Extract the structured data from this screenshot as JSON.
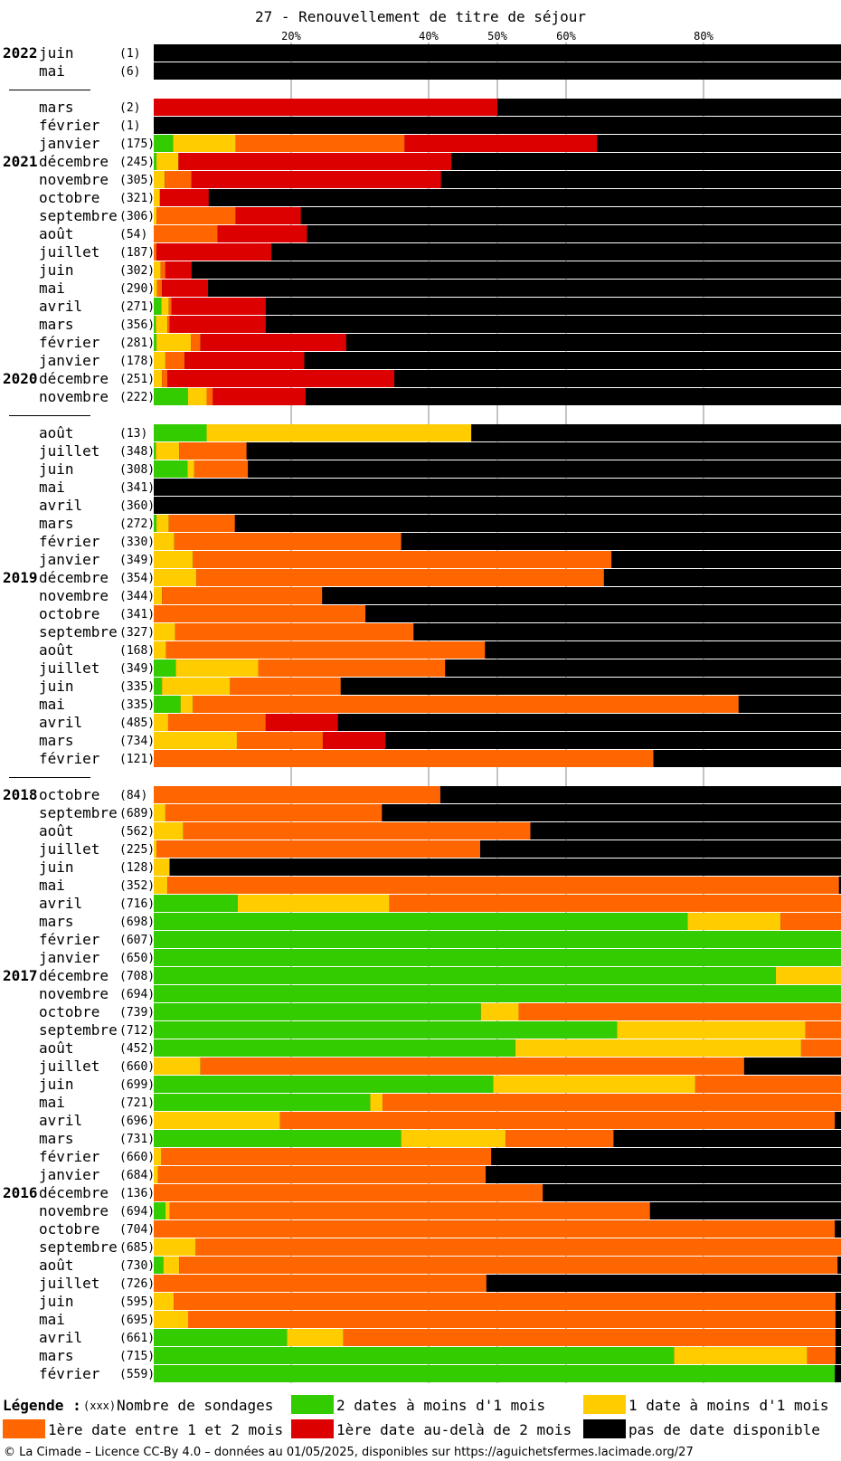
{
  "chart_data": {
    "type": "bar",
    "orientation": "horizontal-stacked",
    "title": "27 - Renouvellement de titre de séjour",
    "x_ticks": [
      {
        "value": 20,
        "label": "20%"
      },
      {
        "value": 40,
        "label": "40%"
      },
      {
        "value": 50,
        "label": "50%"
      },
      {
        "value": 60,
        "label": "60%"
      },
      {
        "value": 80,
        "label": "80%"
      }
    ],
    "xlim": [
      0,
      100
    ],
    "colors": {
      "green": "#33cc00",
      "yellow": "#ffcc00",
      "orange": "#ff6600",
      "red": "#dd0000",
      "black": "#000000"
    },
    "series": [
      {
        "key": "green",
        "name": "2 dates à moins d'1 mois"
      },
      {
        "key": "yellow",
        "name": "1 date à moins d'1 mois"
      },
      {
        "key": "orange",
        "name": "1ère date entre 1 et 2 mois"
      },
      {
        "key": "red",
        "name": "1ère date au-delà de 2 mois"
      },
      {
        "key": "black",
        "name": "pas de date disponible"
      }
    ],
    "rows": [
      {
        "year": "2022",
        "month": "juin",
        "n": "(1)",
        "g": 0,
        "y": 0,
        "o": 0,
        "r": 0
      },
      {
        "month": "mai",
        "n": "(6)",
        "g": 0,
        "y": 0,
        "o": 0,
        "r": 0
      },
      {
        "gap": true
      },
      {
        "month": "mars",
        "n": "(2)",
        "g": 0,
        "y": 0,
        "o": 0,
        "r": 50.0
      },
      {
        "month": "février",
        "n": "(1)",
        "g": 0,
        "y": 0,
        "o": 0,
        "r": 0
      },
      {
        "month": "janvier",
        "n": "(175)",
        "g": 2.8,
        "y": 9.1,
        "o": 24.6,
        "r": 28.0
      },
      {
        "year": "2021",
        "month": "décembre",
        "n": "(245)",
        "g": 0.4,
        "y": 3.2,
        "o": 0,
        "r": 39.7
      },
      {
        "month": "novembre",
        "n": "(305)",
        "g": 0,
        "y": 1.6,
        "o": 3.9,
        "r": 36.3
      },
      {
        "month": "octobre",
        "n": "(321)",
        "g": 0,
        "y": 0.9,
        "o": 0,
        "r": 7.1
      },
      {
        "month": "septembre",
        "n": "(306)",
        "g": 0,
        "y": 0.4,
        "o": 11.5,
        "r": 9.5
      },
      {
        "month": "août",
        "n": "(54)",
        "g": 0,
        "y": 0,
        "o": 9.3,
        "r": 13.0
      },
      {
        "month": "juillet",
        "n": "(187)",
        "g": 0,
        "y": 0,
        "o": 0.4,
        "r": 16.7
      },
      {
        "month": "juin",
        "n": "(302)",
        "g": 0,
        "y": 1.0,
        "o": 0.7,
        "r": 3.8
      },
      {
        "month": "mai",
        "n": "(290)",
        "g": 0,
        "y": 0.5,
        "o": 0.7,
        "r": 6.7
      },
      {
        "month": "avril",
        "n": "(271)",
        "g": 1.1,
        "y": 1.1,
        "o": 0.4,
        "r": 13.7
      },
      {
        "month": "mars",
        "n": "(356)",
        "g": 0.3,
        "y": 1.7,
        "o": 0.3,
        "r": 14.0
      },
      {
        "month": "février",
        "n": "(281)",
        "g": 0.4,
        "y": 5.0,
        "o": 1.4,
        "r": 21.2
      },
      {
        "month": "janvier",
        "n": "(178)",
        "g": 0,
        "y": 1.7,
        "o": 2.8,
        "r": 17.4
      },
      {
        "year": "2020",
        "month": "décembre",
        "n": "(251)",
        "g": 0,
        "y": 1.2,
        "o": 0.8,
        "r": 33.0
      },
      {
        "month": "novembre",
        "n": "(222)",
        "g": 5.0,
        "y": 2.7,
        "o": 0.9,
        "r": 13.5
      },
      {
        "gap": true
      },
      {
        "month": "août",
        "n": "(13)",
        "g": 7.7,
        "y": 38.5,
        "o": 0,
        "r": 0
      },
      {
        "month": "juillet",
        "n": "(348)",
        "g": 0.3,
        "y": 3.4,
        "o": 9.8,
        "r": 0
      },
      {
        "month": "juin",
        "n": "(308)",
        "g": 4.9,
        "y": 1.0,
        "o": 7.8,
        "r": 0
      },
      {
        "month": "mai",
        "n": "(341)",
        "g": 0,
        "y": 0,
        "o": 0,
        "r": 0
      },
      {
        "month": "avril",
        "n": "(360)",
        "g": 0,
        "y": 0,
        "o": 0,
        "r": 0
      },
      {
        "month": "mars",
        "n": "(272)",
        "g": 0.4,
        "y": 1.8,
        "o": 9.6,
        "r": 0
      },
      {
        "month": "février",
        "n": "(330)",
        "g": 0,
        "y": 3.0,
        "o": 33.0,
        "r": 0
      },
      {
        "month": "janvier",
        "n": "(349)",
        "g": 0,
        "y": 5.7,
        "o": 60.9,
        "r": 0
      },
      {
        "year": "2019",
        "month": "décembre",
        "n": "(354)",
        "g": 0,
        "y": 6.2,
        "o": 59.3,
        "r": 0
      },
      {
        "month": "novembre",
        "n": "(344)",
        "g": 0,
        "y": 1.2,
        "o": 23.3,
        "r": 0
      },
      {
        "month": "octobre",
        "n": "(341)",
        "g": 0,
        "y": 0,
        "o": 30.8,
        "r": 0
      },
      {
        "month": "septembre",
        "n": "(327)",
        "g": 0,
        "y": 3.1,
        "o": 34.7,
        "r": 0
      },
      {
        "month": "août",
        "n": "(168)",
        "g": 0,
        "y": 1.8,
        "o": 46.4,
        "r": 0
      },
      {
        "month": "juillet",
        "n": "(349)",
        "g": 3.2,
        "y": 12.0,
        "o": 27.2,
        "r": 0
      },
      {
        "month": "juin",
        "n": "(335)",
        "g": 1.2,
        "y": 9.9,
        "o": 16.1,
        "r": 0
      },
      {
        "month": "mai",
        "n": "(335)",
        "g": 3.9,
        "y": 1.8,
        "o": 79.4,
        "r": 0
      },
      {
        "month": "avril",
        "n": "(485)",
        "g": 0,
        "y": 2.1,
        "o": 14.2,
        "r": 10.5
      },
      {
        "month": "mars",
        "n": "(734)",
        "g": 0,
        "y": 12.1,
        "o": 12.5,
        "r": 9.1
      },
      {
        "month": "février",
        "n": "(121)",
        "g": 0,
        "y": 0,
        "o": 72.7,
        "r": 0
      },
      {
        "gap": true
      },
      {
        "year": "2018",
        "month": "octobre",
        "n": "(84)",
        "g": 0,
        "y": 0,
        "o": 41.7,
        "r": 0
      },
      {
        "month": "septembre",
        "n": "(689)",
        "g": 0,
        "y": 1.7,
        "o": 31.5,
        "r": 0
      },
      {
        "month": "août",
        "n": "(562)",
        "g": 0,
        "y": 4.3,
        "o": 50.5,
        "r": 0
      },
      {
        "month": "juillet",
        "n": "(225)",
        "g": 0,
        "y": 0.4,
        "o": 47.1,
        "r": 0
      },
      {
        "month": "juin",
        "n": "(128)",
        "g": 0,
        "y": 2.3,
        "o": 0,
        "r": 0
      },
      {
        "month": "mai",
        "n": "(352)",
        "g": 0,
        "y": 2.0,
        "o": 97.7,
        "r": 0
      },
      {
        "month": "avril",
        "n": "(716)",
        "g": 12.2,
        "y": 22.1,
        "o": 65.7,
        "r": 0
      },
      {
        "month": "mars",
        "n": "(698)",
        "g": 77.7,
        "y": 13.5,
        "o": 8.8,
        "r": 0
      },
      {
        "month": "février",
        "n": "(607)",
        "g": 100,
        "y": 0,
        "o": 0,
        "r": 0
      },
      {
        "month": "janvier",
        "n": "(650)",
        "g": 100,
        "y": 0,
        "o": 0,
        "r": 0
      },
      {
        "year": "2017",
        "month": "décembre",
        "n": "(708)",
        "g": 90.5,
        "y": 9.5,
        "o": 0,
        "r": 0
      },
      {
        "month": "novembre",
        "n": "(694)",
        "g": 100,
        "y": 0,
        "o": 0,
        "r": 0
      },
      {
        "month": "octobre",
        "n": "(739)",
        "g": 47.6,
        "y": 5.5,
        "o": 46.9,
        "r": 0
      },
      {
        "month": "septembre",
        "n": "(712)",
        "g": 67.4,
        "y": 27.4,
        "o": 5.2,
        "r": 0
      },
      {
        "month": "août",
        "n": "(452)",
        "g": 52.6,
        "y": 41.6,
        "o": 5.8,
        "r": 0
      },
      {
        "month": "juillet",
        "n": "(660)",
        "g": 0,
        "y": 6.8,
        "o": 79.1,
        "r": 0
      },
      {
        "month": "juin",
        "n": "(699)",
        "g": 49.4,
        "y": 29.4,
        "o": 21.2,
        "r": 0
      },
      {
        "month": "mai",
        "n": "(721)",
        "g": 31.5,
        "y": 1.8,
        "o": 66.7,
        "r": 0
      },
      {
        "month": "avril",
        "n": "(696)",
        "g": 0,
        "y": 18.4,
        "o": 80.7,
        "r": 0
      },
      {
        "month": "mars",
        "n": "(731)",
        "g": 36.0,
        "y": 15.2,
        "o": 15.7,
        "r": 0
      },
      {
        "month": "février",
        "n": "(660)",
        "g": 0,
        "y": 1.1,
        "o": 48.0,
        "r": 0
      },
      {
        "month": "janvier",
        "n": "(684)",
        "g": 0,
        "y": 0.6,
        "o": 47.7,
        "r": 0
      },
      {
        "year": "2016",
        "month": "décembre",
        "n": "(136)",
        "g": 0,
        "y": 0,
        "o": 56.6,
        "r": 0
      },
      {
        "month": "novembre",
        "n": "(694)",
        "g": 1.7,
        "y": 0.6,
        "o": 69.9,
        "r": 0
      },
      {
        "month": "octobre",
        "n": "(704)",
        "g": 0,
        "y": 0,
        "o": 99.1,
        "r": 0
      },
      {
        "month": "septembre",
        "n": "(685)",
        "g": 0,
        "y": 6.1,
        "o": 93.9,
        "r": 0
      },
      {
        "month": "août",
        "n": "(730)",
        "g": 1.4,
        "y": 2.3,
        "o": 95.8,
        "r": 0
      },
      {
        "month": "juillet",
        "n": "(726)",
        "g": 0,
        "y": 0,
        "o": 48.4,
        "r": 0
      },
      {
        "month": "juin",
        "n": "(595)",
        "g": 0,
        "y": 2.9,
        "o": 96.3,
        "r": 0
      },
      {
        "month": "mai",
        "n": "(695)",
        "g": 0,
        "y": 5.0,
        "o": 94.2,
        "r": 0
      },
      {
        "month": "avril",
        "n": "(661)",
        "g": 19.4,
        "y": 8.2,
        "o": 71.6,
        "r": 0
      },
      {
        "month": "mars",
        "n": "(715)",
        "g": 75.7,
        "y": 19.4,
        "o": 4.1,
        "r": 0
      },
      {
        "month": "février",
        "n": "(559)",
        "g": 99.1,
        "y": 0,
        "o": 0,
        "r": 0
      }
    ]
  },
  "legend": {
    "title": "Légende :",
    "count_key": "(xxx)",
    "count_label": "Nombre de sondages"
  },
  "footer": "© La Cimade – Licence CC-By 4.0 – données au 01/05/2025, disponibles sur https://aguichetsfermes.lacimade.org/27"
}
